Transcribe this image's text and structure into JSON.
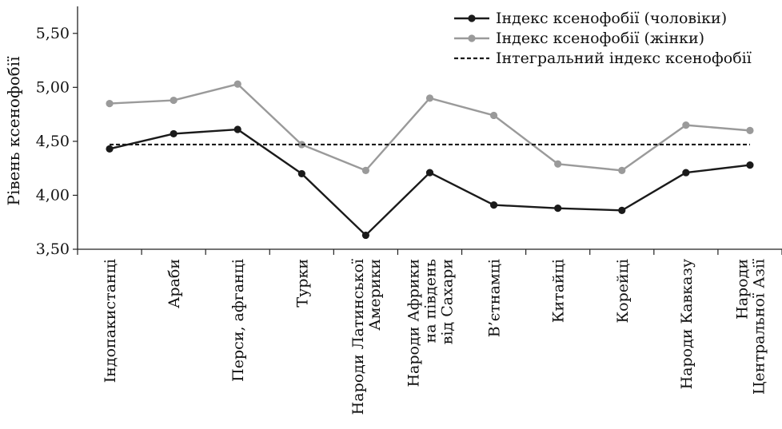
{
  "chart_data": {
    "type": "line",
    "ylabel": "Рівень ксенофобії",
    "ylim": [
      3.5,
      5.75
    ],
    "yticks": [
      "3,50",
      "4,00",
      "4,50",
      "5,00",
      "5,50"
    ],
    "ytick_values": [
      3.5,
      4.0,
      4.5,
      5.0,
      5.5
    ],
    "grid": false,
    "legend_position": "top-right",
    "categories": [
      [
        "Індопакистанці"
      ],
      [
        "Араби"
      ],
      [
        "Перси, афганці"
      ],
      [
        "Турки"
      ],
      [
        "Народи Латинської",
        "Америки"
      ],
      [
        "Народи Африки",
        "на південь",
        "від Сахари"
      ],
      [
        "В’єтнамці"
      ],
      [
        "Китайці"
      ],
      [
        "Корейці"
      ],
      [
        "Народи Кавказу"
      ],
      [
        "Народи",
        "Центральної Азії"
      ]
    ],
    "series": [
      {
        "name": "Індекс ксенофобії (чоловіки)",
        "color": "#1a1a1a",
        "style": "solid-markers",
        "values": [
          4.43,
          4.57,
          4.61,
          4.2,
          3.63,
          4.21,
          3.91,
          3.88,
          3.86,
          4.21,
          4.28
        ]
      },
      {
        "name": "Індекс ксенофобії (жінки)",
        "color": "#9a9a9a",
        "style": "solid-markers",
        "values": [
          4.85,
          4.88,
          5.03,
          4.47,
          4.23,
          4.9,
          4.74,
          4.29,
          4.23,
          4.65,
          4.6
        ]
      },
      {
        "name": "Інтегральний індекс ксенофобії",
        "color": "#1a1a1a",
        "style": "dashed",
        "constant": 4.47
      }
    ]
  }
}
